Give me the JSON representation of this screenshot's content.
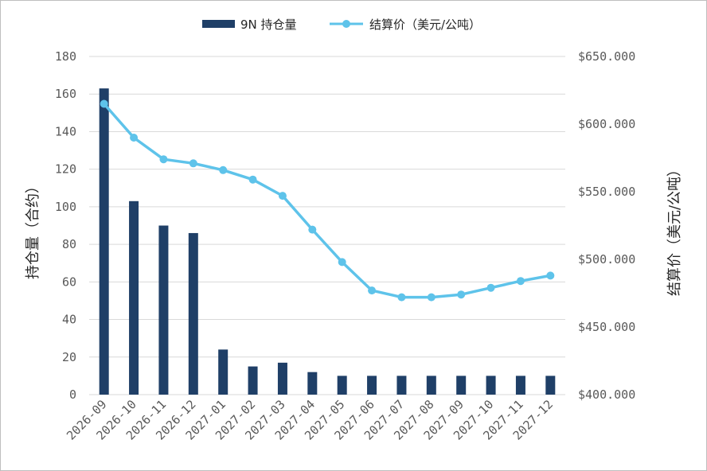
{
  "chart_data": {
    "type": "bar+line",
    "categories": [
      "2026-09",
      "2026-10",
      "2026-11",
      "2026-12",
      "2027-01",
      "2027-02",
      "2027-03",
      "2027-04",
      "2027-05",
      "2027-06",
      "2027-07",
      "2027-08",
      "2027-09",
      "2027-10",
      "2027-11",
      "2027-12"
    ],
    "series": [
      {
        "name": "9N 持仓量",
        "type": "bar",
        "axis": "left",
        "color": "#1f3f67",
        "values": [
          163,
          103,
          90,
          86,
          24,
          15,
          17,
          12,
          10,
          10,
          10,
          10,
          10,
          10,
          10,
          10
        ]
      },
      {
        "name": "结算价（美元/公吨）",
        "type": "line",
        "axis": "right",
        "color": "#5ec3ea",
        "values": [
          615,
          590,
          574,
          571,
          566,
          559,
          547,
          522,
          498,
          477,
          472,
          472,
          474,
          479,
          484,
          488
        ]
      }
    ],
    "y_left": {
      "label": "持仓量（合约）",
      "min": 0,
      "max": 180,
      "ticks": [
        "0",
        "20",
        "40",
        "60",
        "80",
        "100",
        "120",
        "140",
        "160",
        "180"
      ]
    },
    "y_right": {
      "label": "结算价（美元/公吨）",
      "min": 400,
      "max": 650,
      "ticks": [
        "$400.000",
        "$450.000",
        "$500.000",
        "$550.000",
        "$600.000",
        "$650.000"
      ]
    },
    "grid": true,
    "legend_position": "top-center"
  }
}
